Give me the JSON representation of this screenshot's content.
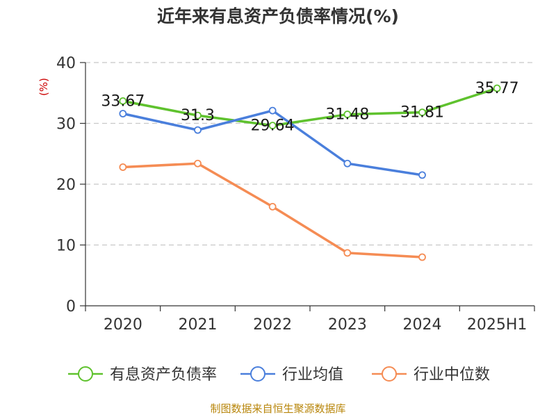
{
  "chart_data": {
    "type": "line",
    "title": "近年来有息资产负债率情况(%)",
    "ylabel": "(%)",
    "xlabel": "",
    "categories": [
      "2020",
      "2021",
      "2022",
      "2023",
      "2024",
      "2025H1"
    ],
    "ylim": [
      0,
      40
    ],
    "yticks": [
      0,
      10,
      20,
      30,
      40
    ],
    "grid": true,
    "legend_position": "bottom",
    "series": [
      {
        "name": "有息资产负债率",
        "color": "#5fc22e",
        "values": [
          33.67,
          31.3,
          29.64,
          31.48,
          31.81,
          35.77
        ],
        "labels": [
          "33.67",
          "31.3",
          "29.64",
          "31.48",
          "31.81",
          "35.77"
        ]
      },
      {
        "name": "行业均值",
        "color": "#4a7fdc",
        "values": [
          31.6,
          28.9,
          32.1,
          23.4,
          21.5,
          null
        ]
      },
      {
        "name": "行业中位数",
        "color": "#f58c54",
        "values": [
          22.8,
          23.4,
          16.3,
          8.7,
          8.0,
          null
        ]
      }
    ]
  },
  "source": "制图数据来自恒生聚源数据库"
}
